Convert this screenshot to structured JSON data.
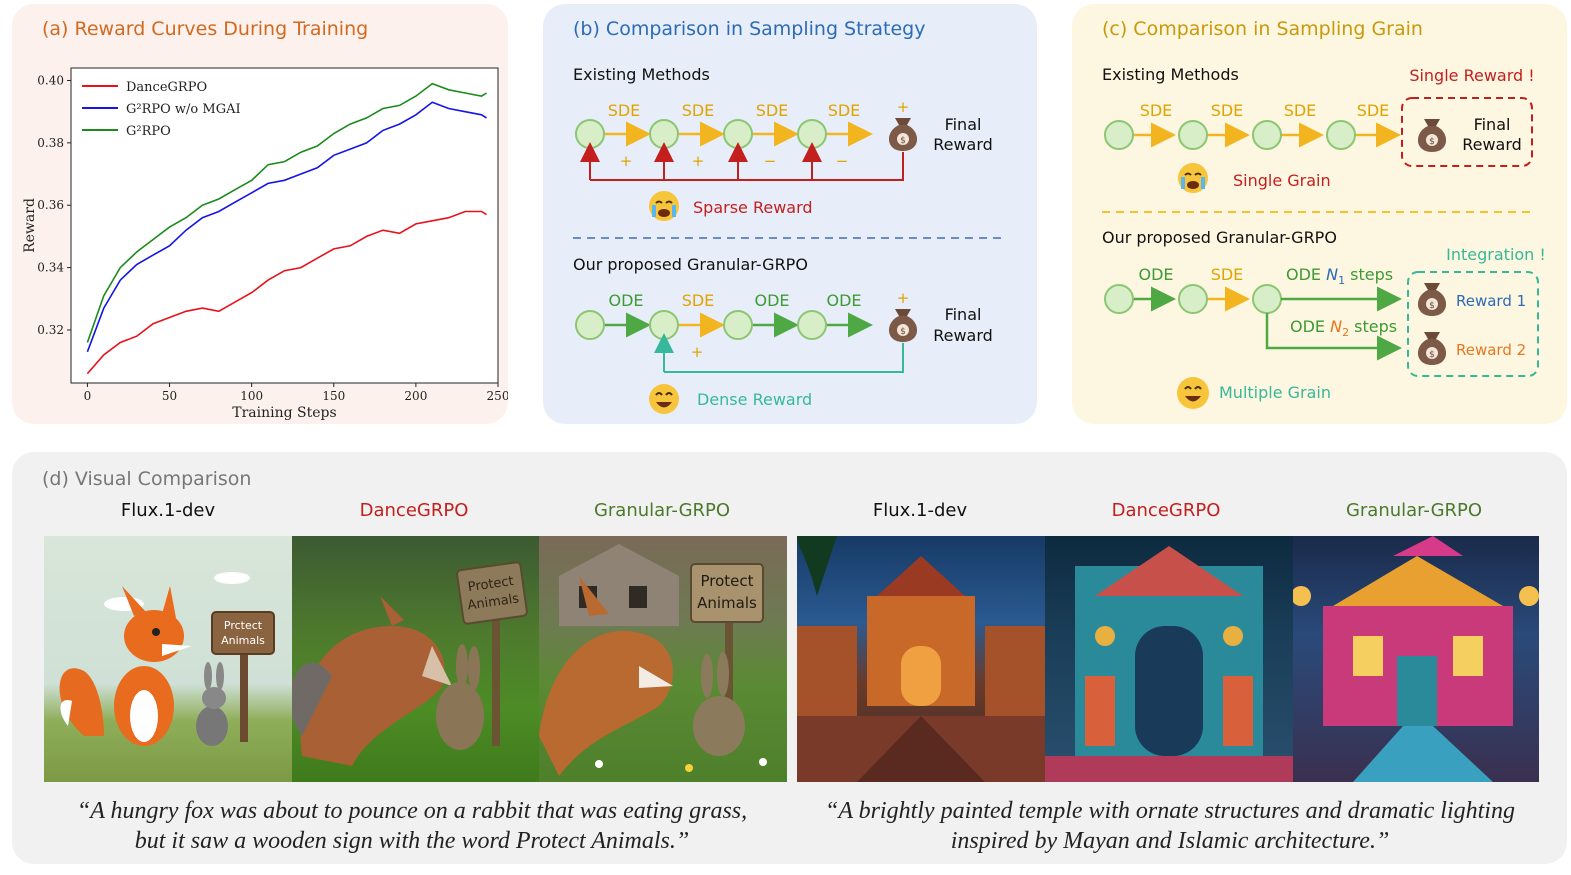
{
  "panel_a": {
    "title": "(a) Reward Curves During Training",
    "title_color": "#d2691e",
    "chart_data": {
      "type": "line",
      "xlabel": "Training Steps",
      "ylabel": "Reward",
      "xlim": [
        -10,
        250
      ],
      "ylim": [
        0.303,
        0.404
      ],
      "xticks": [
        0,
        50,
        100,
        150,
        200,
        250
      ],
      "yticks": [
        0.32,
        0.34,
        0.36,
        0.38,
        0.4
      ],
      "ytick_labels": [
        "0.32",
        "0.34",
        "0.36",
        "0.38",
        "0.40"
      ],
      "legend": "top-left",
      "series": [
        {
          "name": "DanceGRPO",
          "color": "#e8111b",
          "x": [
            0,
            10,
            20,
            30,
            40,
            50,
            60,
            70,
            80,
            90,
            100,
            110,
            120,
            130,
            140,
            150,
            160,
            170,
            180,
            190,
            200,
            210,
            220,
            230,
            240,
            243
          ],
          "y": [
            0.306,
            0.312,
            0.316,
            0.318,
            0.322,
            0.324,
            0.326,
            0.327,
            0.326,
            0.329,
            0.332,
            0.336,
            0.339,
            0.34,
            0.343,
            0.346,
            0.347,
            0.35,
            0.352,
            0.351,
            0.354,
            0.355,
            0.356,
            0.358,
            0.358,
            0.357
          ]
        },
        {
          "name": "G²RPO w/o MGAI",
          "color": "#1515e6",
          "x": [
            0,
            10,
            20,
            30,
            40,
            50,
            60,
            70,
            80,
            90,
            100,
            110,
            120,
            130,
            140,
            150,
            160,
            170,
            180,
            190,
            200,
            210,
            220,
            230,
            240,
            243
          ],
          "y": [
            0.313,
            0.327,
            0.336,
            0.341,
            0.344,
            0.347,
            0.352,
            0.356,
            0.358,
            0.361,
            0.364,
            0.367,
            0.368,
            0.37,
            0.372,
            0.376,
            0.378,
            0.38,
            0.384,
            0.386,
            0.389,
            0.393,
            0.391,
            0.39,
            0.389,
            0.388
          ]
        },
        {
          "name": "G²RPO",
          "color": "#1d8a1d",
          "x": [
            0,
            10,
            20,
            30,
            40,
            50,
            60,
            70,
            80,
            90,
            100,
            110,
            120,
            130,
            140,
            150,
            160,
            170,
            180,
            190,
            200,
            210,
            220,
            230,
            240,
            243
          ],
          "y": [
            0.316,
            0.331,
            0.34,
            0.345,
            0.349,
            0.353,
            0.356,
            0.36,
            0.362,
            0.365,
            0.368,
            0.373,
            0.374,
            0.377,
            0.379,
            0.383,
            0.386,
            0.388,
            0.391,
            0.392,
            0.395,
            0.399,
            0.397,
            0.396,
            0.395,
            0.396
          ]
        }
      ]
    }
  },
  "panel_b": {
    "title": "(b) Comparison in Sampling Strategy",
    "title_color": "#2b6cb5",
    "existing": "Existing Methods",
    "proposed": "Our proposed Granular-GRPO",
    "top_steps": [
      "SDE",
      "SDE",
      "SDE",
      "SDE"
    ],
    "top_signs": [
      "+",
      "+",
      "−",
      "−"
    ],
    "top_bag_sign": "+",
    "bottom_steps": [
      "ODE",
      "SDE",
      "ODE",
      "ODE"
    ],
    "bottom_sign": "+",
    "bottom_bag_sign": "+",
    "final_reward": [
      "Final",
      "Reward"
    ],
    "sparse": "Sparse Reward",
    "dense": "Dense Reward",
    "colors": {
      "node_fill": "#d7eec9",
      "node_stroke": "#8cc672",
      "sde": "#f2b520",
      "ode": "#4ea944",
      "sparse": "#c41f1f",
      "dense": "#37b89a"
    }
  },
  "panel_c": {
    "title": "(c) Comparison in Sampling Grain",
    "title_color": "#c89a0b",
    "existing": "Existing Methods",
    "proposed": "Our proposed Granular-GRPO",
    "top_steps": [
      "SDE",
      "SDE",
      "SDE",
      "SDE"
    ],
    "single_reward": "Single Reward !",
    "final_reward": [
      "Final",
      "Reward"
    ],
    "single_grain": "Single Grain",
    "bottom_steps": [
      "ODE",
      "SDE"
    ],
    "branch1_text": "ODE ",
    "branch1_var": "N",
    "branch1_sub": "1",
    "branch1_suffix": " steps",
    "branch2_text": "ODE ",
    "branch2_var": "N",
    "branch2_sub": "2",
    "branch2_suffix": " steps",
    "integration": "Integration !",
    "reward1": "Reward 1",
    "reward2": "Reward 2",
    "multiple_grain": "Multiple Grain"
  },
  "panel_d": {
    "title": "(d) Visual Comparison",
    "labels_left": [
      {
        "text": "Flux.1-dev",
        "color": "#111111"
      },
      {
        "text": "DanceGRPO",
        "color": "#c41f1f"
      },
      {
        "text": "Granular-GRPO",
        "color": "#4a7a2a"
      }
    ],
    "labels_right": [
      {
        "text": "Flux.1-dev",
        "color": "#111111"
      },
      {
        "text": "DanceGRPO",
        "color": "#c41f1f"
      },
      {
        "text": "Granular-GRPO",
        "color": "#4a7a2a"
      }
    ],
    "sign_text_1": [
      "Prctect",
      "Animals"
    ],
    "sign_text_2": [
      "Protect",
      "Animals"
    ],
    "sign_text_3": [
      "Protect",
      "Animals"
    ],
    "caption_left": [
      "“A hungry fox was about to pounce on a rabbit that was eating grass,",
      "but it saw a wooden sign with the word Protect Animals.”"
    ],
    "caption_right": [
      "“A brightly painted temple with ornate structures and dramatic lighting",
      "inspired by Mayan and Islamic architecture.”"
    ]
  }
}
